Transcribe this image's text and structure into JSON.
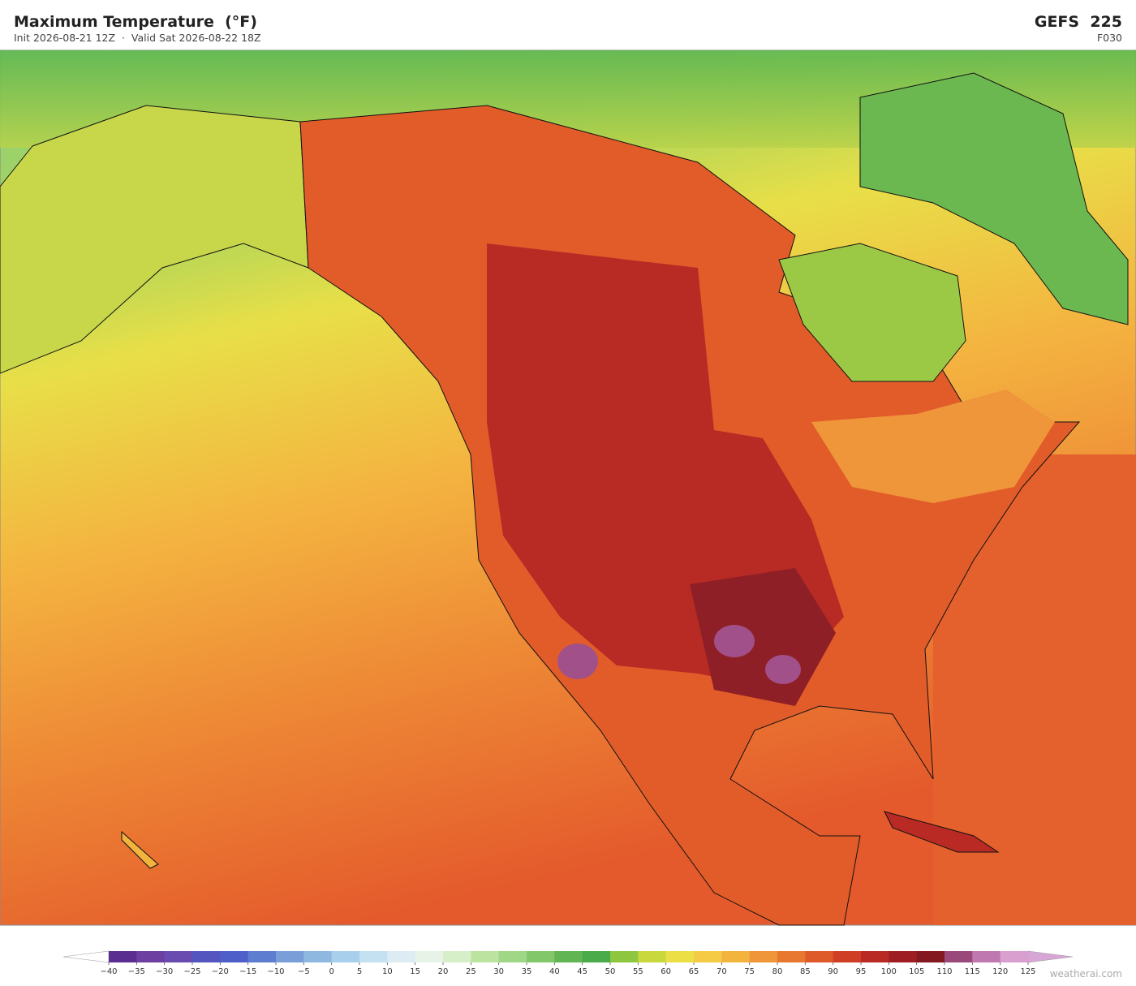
{
  "header": {
    "title": "Maximum Temperature  (°F)",
    "subtitle": "Init 2026-08-21 12Z  ·  Valid Sat 2026-08-22 18Z",
    "model": "GEFS  225",
    "forecast_hour": "F030"
  },
  "colorbar": {
    "ticks": [
      {
        "value": -40,
        "label": "−40"
      },
      {
        "value": -35,
        "label": "−35"
      },
      {
        "value": -30,
        "label": "−30"
      },
      {
        "value": -25,
        "label": "−25"
      },
      {
        "value": -20,
        "label": "−20"
      },
      {
        "value": -15,
        "label": "−15"
      },
      {
        "value": -10,
        "label": "−10"
      },
      {
        "value": -5,
        "label": "−5"
      },
      0,
      5,
      10,
      15,
      20,
      25,
      30,
      35,
      40,
      45,
      50,
      55,
      60,
      65,
      70,
      75,
      80,
      85,
      90,
      95,
      100,
      105,
      110,
      115,
      120,
      125
    ],
    "colors": [
      "#5a2e91",
      "#6d3fa0",
      "#6a4cb0",
      "#5555c0",
      "#4e5fca",
      "#5f7dd0",
      "#7a9fd8",
      "#8fb8e0",
      "#a8d0ec",
      "#c3e1f0",
      "#dcecf2",
      "#e6f3e6",
      "#d6efc9",
      "#bde3a0",
      "#9fd786",
      "#82c86a",
      "#62b553",
      "#4aab4a",
      "#8dc63f",
      "#c9d83d",
      "#ebdf45",
      "#f5cb45",
      "#f3b43e",
      "#ef953a",
      "#e8782f",
      "#de5a2a",
      "#cf3f26",
      "#b92a24",
      "#9e1d22",
      "#841820",
      "#9a4a7a",
      "#c078b0",
      "#d9a0cf"
    ],
    "under_color": "#ffffff",
    "over_color": "#d8a6d6"
  },
  "credit": "weatherai.com"
}
